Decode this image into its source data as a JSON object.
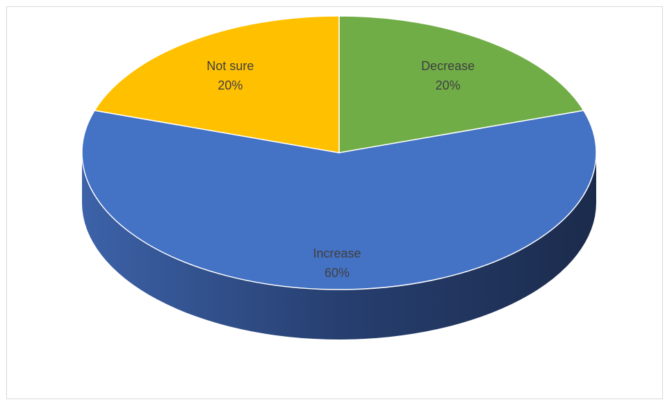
{
  "chart_data": {
    "type": "pie",
    "style": "3d",
    "title": "",
    "slices": [
      {
        "label": "Increase",
        "value": 60,
        "value_label": "60%",
        "color": "#4472c4"
      },
      {
        "label": "Decrease",
        "value": 20,
        "value_label": "20%",
        "color": "#70ad47"
      },
      {
        "label": "Not sure",
        "value": 20,
        "value_label": "20%",
        "color": "#ffc000"
      }
    ]
  }
}
